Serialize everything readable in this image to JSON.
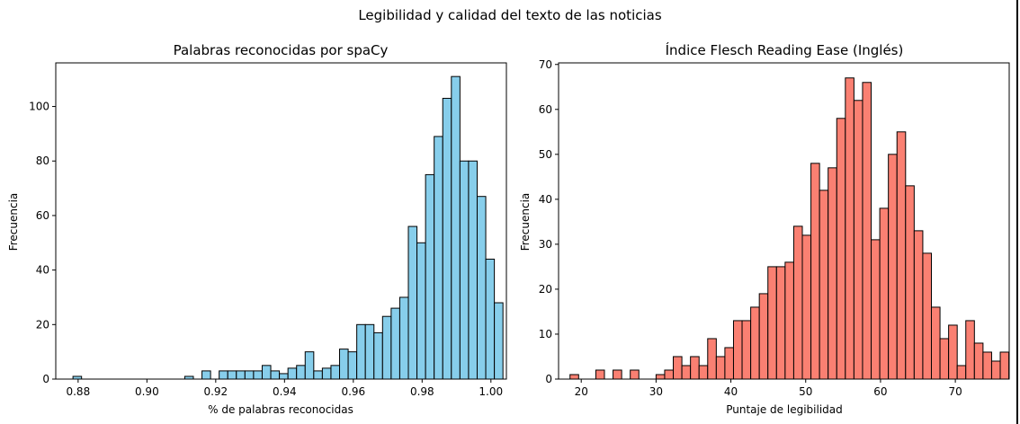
{
  "figure_title": "Legibilidad y calidad del texto de las noticias",
  "chart_data": [
    {
      "type": "histogram",
      "title": "Palabras reconocidas por spaCy",
      "xlabel": "% de palabras reconocidas",
      "ylabel": "Frecuencia",
      "xlim": [
        0.8735,
        1.0045
      ],
      "ylim": [
        0,
        116
      ],
      "xticks": [
        0.88,
        0.9,
        0.92,
        0.94,
        0.96,
        0.98,
        1.0
      ],
      "xtick_labels": [
        "0.88",
        "0.90",
        "0.92",
        "0.94",
        "0.96",
        "0.98",
        "1.00"
      ],
      "yticks": [
        0,
        20,
        40,
        60,
        80,
        100
      ],
      "bar_color": "#87ceeb",
      "edge_color": "#000000",
      "bins": [
        {
          "x0": 0.8785,
          "x1": 0.881,
          "count": 1
        },
        {
          "x0": 0.911,
          "x1": 0.9135,
          "count": 1
        },
        {
          "x0": 0.9135,
          "x1": 0.916,
          "count": 0
        },
        {
          "x0": 0.916,
          "x1": 0.9185,
          "count": 3
        },
        {
          "x0": 0.9185,
          "x1": 0.921,
          "count": 0
        },
        {
          "x0": 0.921,
          "x1": 0.9235,
          "count": 3
        },
        {
          "x0": 0.9235,
          "x1": 0.926,
          "count": 3
        },
        {
          "x0": 0.926,
          "x1": 0.9285,
          "count": 3
        },
        {
          "x0": 0.9285,
          "x1": 0.931,
          "count": 3
        },
        {
          "x0": 0.931,
          "x1": 0.9335,
          "count": 3
        },
        {
          "x0": 0.9335,
          "x1": 0.936,
          "count": 5
        },
        {
          "x0": 0.936,
          "x1": 0.9385,
          "count": 3
        },
        {
          "x0": 0.9385,
          "x1": 0.941,
          "count": 2
        },
        {
          "x0": 0.941,
          "x1": 0.9435,
          "count": 4
        },
        {
          "x0": 0.9435,
          "x1": 0.946,
          "count": 5
        },
        {
          "x0": 0.946,
          "x1": 0.9485,
          "count": 10
        },
        {
          "x0": 0.9485,
          "x1": 0.951,
          "count": 3
        },
        {
          "x0": 0.951,
          "x1": 0.9535,
          "count": 4
        },
        {
          "x0": 0.9535,
          "x1": 0.956,
          "count": 5
        },
        {
          "x0": 0.956,
          "x1": 0.9585,
          "count": 11
        },
        {
          "x0": 0.9585,
          "x1": 0.961,
          "count": 10
        },
        {
          "x0": 0.961,
          "x1": 0.9635,
          "count": 20
        },
        {
          "x0": 0.9635,
          "x1": 0.966,
          "count": 20
        },
        {
          "x0": 0.966,
          "x1": 0.9685,
          "count": 17
        },
        {
          "x0": 0.9685,
          "x1": 0.971,
          "count": 23
        },
        {
          "x0": 0.971,
          "x1": 0.9735,
          "count": 26
        },
        {
          "x0": 0.9735,
          "x1": 0.976,
          "count": 30
        },
        {
          "x0": 0.976,
          "x1": 0.9785,
          "count": 56
        },
        {
          "x0": 0.9785,
          "x1": 0.981,
          "count": 50
        },
        {
          "x0": 0.981,
          "x1": 0.9835,
          "count": 75
        },
        {
          "x0": 0.9835,
          "x1": 0.986,
          "count": 89
        },
        {
          "x0": 0.986,
          "x1": 0.9885,
          "count": 103
        },
        {
          "x0": 0.9885,
          "x1": 0.991,
          "count": 111
        },
        {
          "x0": 0.991,
          "x1": 0.9935,
          "count": 80
        },
        {
          "x0": 0.9935,
          "x1": 0.996,
          "count": 80
        },
        {
          "x0": 0.996,
          "x1": 0.9985,
          "count": 67
        },
        {
          "x0": 0.9985,
          "x1": 1.001,
          "count": 44
        },
        {
          "x0": 1.001,
          "x1": 1.0035,
          "count": 28
        }
      ]
    },
    {
      "type": "histogram",
      "title": "Índice Flesch Reading Ease (Inglés)",
      "xlabel": "Puntaje de legibilidad",
      "ylabel": "Frecuencia",
      "xlim": [
        16.97,
        77.2
      ],
      "ylim": [
        0,
        70.35
      ],
      "xticks": [
        20,
        30,
        40,
        50,
        60,
        70
      ],
      "xtick_labels": [
        "20",
        "30",
        "40",
        "50",
        "60",
        "70"
      ],
      "yticks": [
        0,
        10,
        20,
        30,
        40,
        50,
        60,
        70
      ],
      "bar_color": "#fa8072",
      "edge_color": "#000000",
      "bin_start": 18.5,
      "bin_width": 1.15,
      "counts": [
        1,
        0,
        0,
        2,
        0,
        2,
        0,
        2,
        0,
        0,
        1,
        2,
        5,
        3,
        5,
        3,
        9,
        5,
        7,
        13,
        13,
        16,
        19,
        25,
        25,
        26,
        34,
        32,
        48,
        42,
        47,
        58,
        67,
        62,
        66,
        31,
        38,
        50,
        55,
        43,
        33,
        28,
        16,
        9,
        12,
        3,
        13,
        8,
        6,
        4,
        6
      ]
    }
  ]
}
